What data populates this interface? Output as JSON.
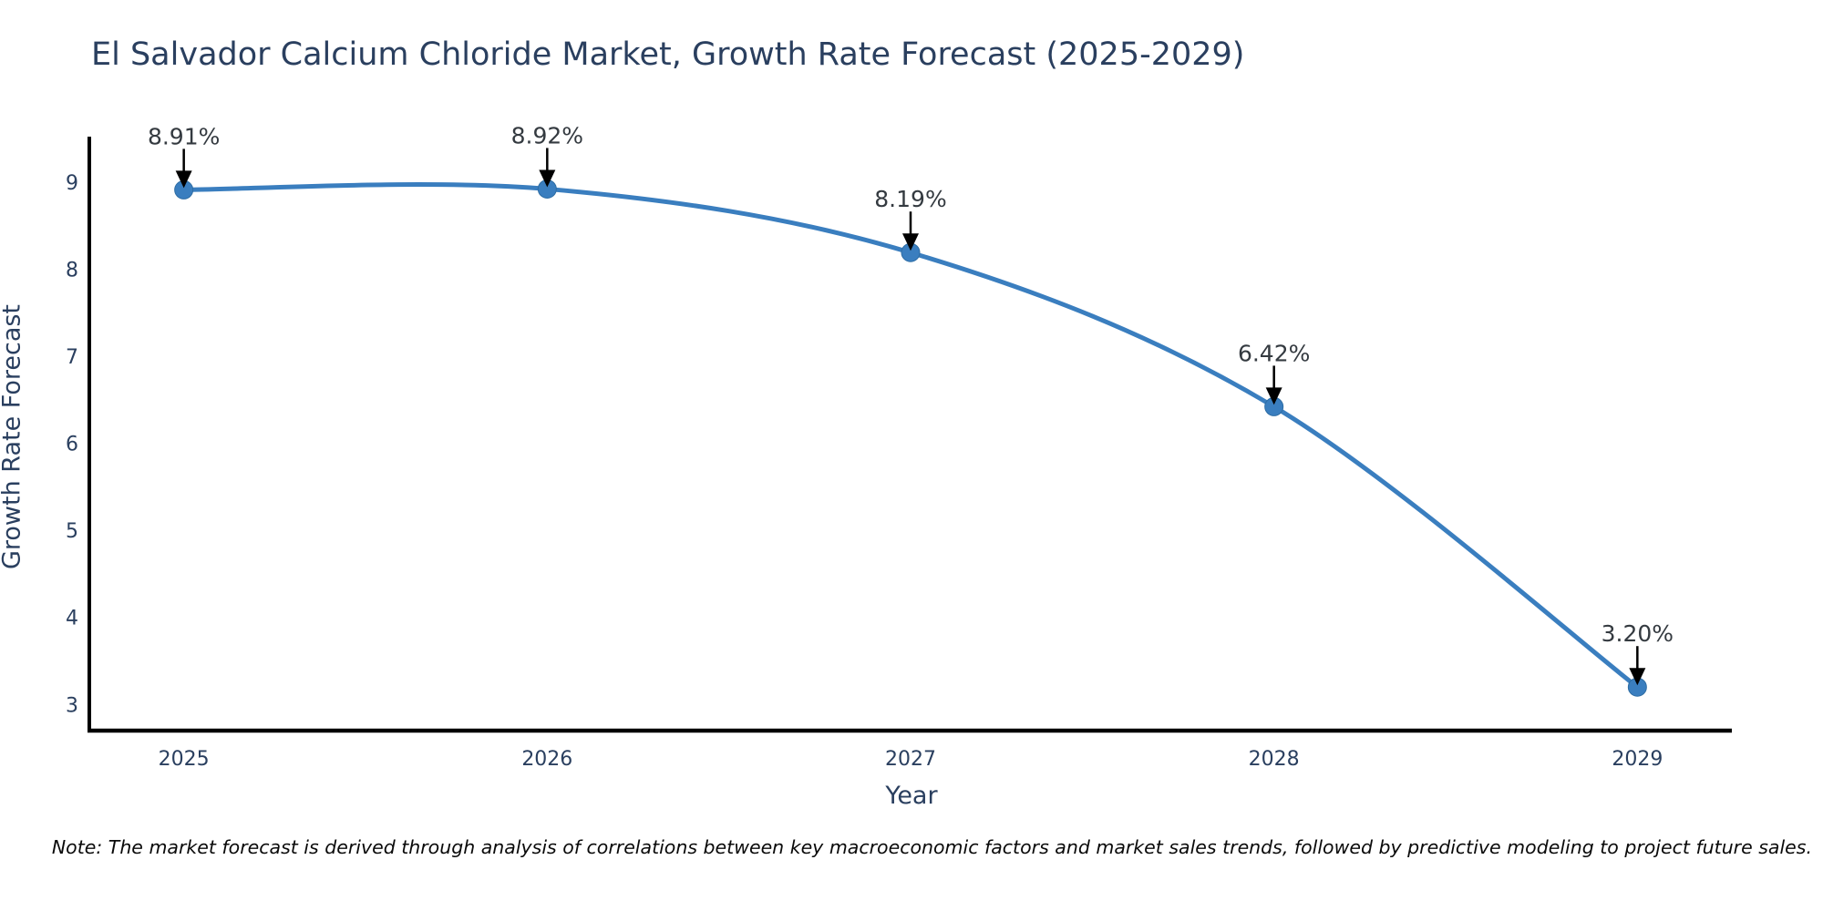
{
  "chart_data": {
    "type": "line",
    "title": "El Salvador Calcium Chloride Market, Growth Rate Forecast (2025-2029)",
    "xlabel": "Year",
    "ylabel": "Growth Rate Forecast",
    "x": [
      2025,
      2026,
      2027,
      2028,
      2029
    ],
    "values": [
      8.91,
      8.92,
      8.19,
      6.42,
      3.2
    ],
    "point_labels": [
      "8.91%",
      "8.92%",
      "8.19%",
      "6.42%",
      "3.20%"
    ],
    "series_name": "Growth Rate Forecast",
    "xticks": [
      2025,
      2026,
      2027,
      2028,
      2029
    ],
    "yticks": [
      3,
      4,
      5,
      6,
      7,
      8,
      9
    ],
    "xlim": [
      2024.74,
      2029.26
    ],
    "ylim": [
      2.7,
      9.5
    ],
    "grid": false,
    "legend": "none",
    "line_shape": "spline",
    "note": "Note: The market forecast is derived through analysis of correlations between key macroeconomic factors and market sales trends, followed by predictive modeling to project future sales.",
    "colors": {
      "line": "#3a7ebf",
      "marker": "#3a7ebf",
      "marker_edge": "#2e6da4",
      "axis_line": "#000000",
      "title_text": "#2a3f5f",
      "tick_text": "#2a3f5f",
      "annotation_text": "#343a40",
      "arrow": "#000000",
      "background": "#ffffff"
    }
  }
}
